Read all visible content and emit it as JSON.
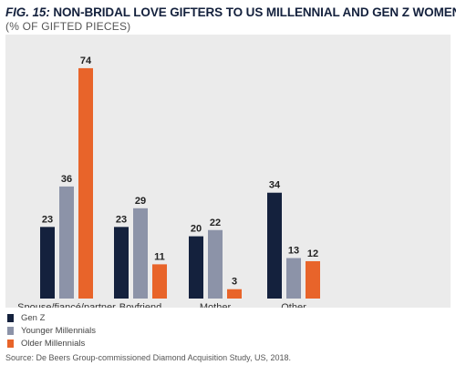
{
  "header": {
    "fig_label": "FIG. 15:",
    "title": "NON-BRIDAL LOVE GIFTERS TO US MILLENNIAL AND GEN Z WOMEN",
    "subtitle": "(% OF GIFTED PIECES)"
  },
  "chart_data": {
    "type": "bar",
    "categories": [
      "Spouse/fiancé/partner",
      "Boyfriend",
      "Mother",
      "Other"
    ],
    "series": [
      {
        "name": "Gen Z",
        "color": "#14213d",
        "values": [
          23,
          23,
          20,
          34
        ]
      },
      {
        "name": "Younger Millennials",
        "color": "#8c93a8",
        "values": [
          36,
          29,
          22,
          13
        ]
      },
      {
        "name": "Older Millennials",
        "color": "#e8642a",
        "values": [
          74,
          11,
          3,
          12
        ]
      }
    ],
    "ylim": [
      0,
      80
    ],
    "grid": false,
    "legend_position": "bottom-left"
  },
  "footer": {
    "source": "Source: De Beers Group-commissioned Diamond Acquisition Study, US, 2018."
  }
}
